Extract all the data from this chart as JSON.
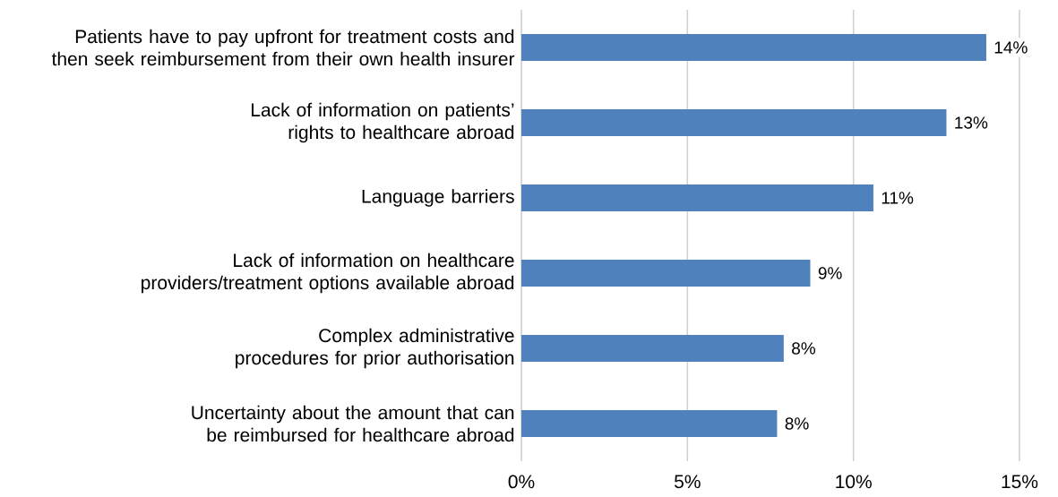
{
  "chart_data": {
    "type": "bar",
    "orientation": "horizontal",
    "categories": [
      "Patients have to pay upfront for treatment costs and then seek reimbursement from their own health insurer",
      "Lack of information on patients’ rights to healthcare abroad",
      "Language barriers",
      "Lack of information on healthcare providers/treatment options available abroad",
      "Complex administrative procedures for prior authorisation",
      "Uncertainty about the amount that can be reimbursed for healthcare abroad"
    ],
    "values": [
      14.0,
      12.8,
      10.6,
      8.7,
      7.9,
      7.7
    ],
    "value_labels": [
      "14%",
      "13%",
      "11%",
      "9%",
      "8%",
      "8%"
    ],
    "color": "#4f81bd",
    "xlim": [
      0,
      15
    ],
    "xticks": [
      {
        "value": 0,
        "label": "0%"
      },
      {
        "value": 5,
        "label": "5%"
      },
      {
        "value": 10,
        "label": "10%"
      },
      {
        "value": 15,
        "label": "15%"
      }
    ],
    "grid": "x"
  }
}
